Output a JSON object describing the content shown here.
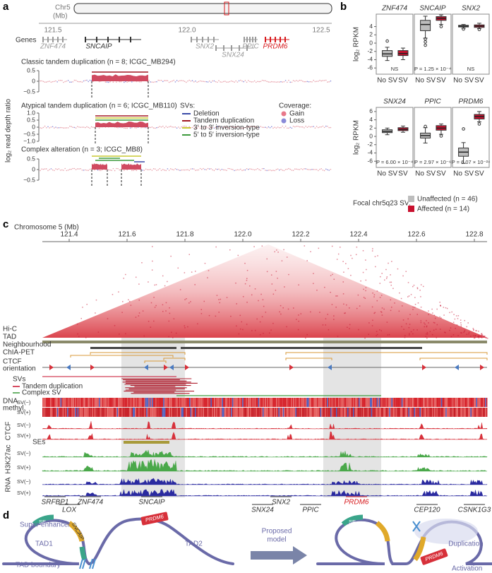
{
  "panel_labels": {
    "a": "a",
    "b": "b",
    "c": "c",
    "d": "d"
  },
  "panel_a": {
    "ideogram_label": "Chr5",
    "ideogram_unit": "(Mb)",
    "position_ticks": [
      "121.5",
      "122.0",
      "122.5"
    ],
    "genes_label": "Genes",
    "genes": [
      {
        "name": "ZNF474",
        "color": "#9a9a9a"
      },
      {
        "name": "SNCAIP",
        "color": "#333333"
      },
      {
        "name": "SNX2",
        "color": "#9a9a9a"
      },
      {
        "name": "SNX24",
        "color": "#9a9a9a"
      },
      {
        "name": "PPIC",
        "color": "#9a9a9a"
      },
      {
        "name": "PRDM6",
        "color": "#d7191c"
      }
    ],
    "y_label": "log₂ read depth ratio",
    "tracks": [
      {
        "title": "Classic tandem duplication (n = 8; ICGC_MB294)",
        "yticks": [
          "0.5",
          "0",
          "−0.5"
        ]
      },
      {
        "title": "Atypical tandem duplication (n = 6; ICGC_MB110)",
        "yticks": [
          "1.0",
          "0.5",
          "0",
          "−0.5",
          "−1.0"
        ]
      },
      {
        "title": "Complex alteration (n = 3; ICGC_MB8)",
        "yticks": [
          "0.5",
          "0",
          "−0.5"
        ]
      }
    ],
    "sv_legend": {
      "title": "SVs:",
      "items": [
        {
          "name": "Deletion",
          "color": "#3b4ba8"
        },
        {
          "name": "Tandem duplication",
          "color": "#a31621"
        },
        {
          "name": "3′ to 3′ inversion-type",
          "color": "#c8c832"
        },
        {
          "name": "5′ to 5′ inversion-type",
          "color": "#3c9a3c"
        }
      ]
    },
    "coverage_legend": {
      "title": "Coverage:",
      "items": [
        {
          "name": "Gain",
          "color": "#e8788a"
        },
        {
          "name": "Loss",
          "color": "#8a8ad8"
        }
      ]
    }
  },
  "chart_data": [
    {
      "type": "box",
      "title": "ZNF474",
      "y_label": "log₂ RPKM",
      "categories": [
        "No SV",
        "SV"
      ],
      "colors": [
        "#bdbdbd",
        "#c8102e"
      ],
      "ylim": [
        -7.5,
        7
      ],
      "yticks": [
        -6,
        -4,
        -2,
        0,
        2,
        4
      ],
      "annotation": "NS",
      "boxes": [
        {
          "whislo": -4.2,
          "q1": -3.2,
          "med": -2.6,
          "q3": -1.8,
          "whishi": -1.0,
          "fliers": [
            0.5
          ]
        },
        {
          "whislo": -4.0,
          "q1": -3.0,
          "med": -2.5,
          "q3": -1.8,
          "whishi": -1.2,
          "fliers": []
        }
      ]
    },
    {
      "type": "box",
      "title": "SNCAIP",
      "categories": [
        "No SV",
        "SV"
      ],
      "colors": [
        "#bdbdbd",
        "#c8102e"
      ],
      "ylim": [
        -7.5,
        7
      ],
      "annotation": "P = 1.25 × 10⁻⁴",
      "boxes": [
        {
          "whislo": 1.2,
          "q1": 3.0,
          "med": 4.5,
          "q3": 5.5,
          "whishi": 6.5,
          "fliers": [
            -0.5,
            0.3,
            1.0
          ]
        },
        {
          "whislo": 4.5,
          "q1": 5.5,
          "med": 6.0,
          "q3": 6.4,
          "whishi": 6.8,
          "fliers": [
            4.0
          ]
        }
      ]
    },
    {
      "type": "box",
      "title": "SNX2",
      "categories": [
        "No SV",
        "SV"
      ],
      "colors": [
        "#bdbdbd",
        "#c8102e"
      ],
      "ylim": [
        -7.5,
        7
      ],
      "annotation": "NS",
      "boxes": [
        {
          "whislo": 3.6,
          "q1": 3.9,
          "med": 4.1,
          "q3": 4.3,
          "whishi": 4.5,
          "fliers": [
            3.4
          ]
        },
        {
          "whislo": 3.5,
          "q1": 3.8,
          "med": 4.1,
          "q3": 4.4,
          "whishi": 4.8,
          "fliers": [
            3.3
          ]
        }
      ]
    },
    {
      "type": "box",
      "title": "SNX24",
      "y_label": "log₂ RPKM",
      "categories": [
        "No SV",
        "SV"
      ],
      "colors": [
        "#bdbdbd",
        "#c8102e"
      ],
      "ylim": [
        -7.5,
        7
      ],
      "yticks": [
        -6,
        -4,
        -2,
        0,
        2,
        4,
        6
      ],
      "annotation": "P = 6.00 × 10⁻⁴",
      "boxes": [
        {
          "whislo": 0.4,
          "q1": 0.9,
          "med": 1.2,
          "q3": 1.6,
          "whishi": 2.0,
          "fliers": []
        },
        {
          "whislo": 1.0,
          "q1": 1.4,
          "med": 1.7,
          "q3": 2.1,
          "whishi": 2.5,
          "fliers": []
        }
      ]
    },
    {
      "type": "box",
      "title": "PPIC",
      "categories": [
        "No SV",
        "SV"
      ],
      "colors": [
        "#bdbdbd",
        "#c8102e"
      ],
      "ylim": [
        -7.5,
        7
      ],
      "annotation": "P = 2.97 × 10⁻⁶",
      "boxes": [
        {
          "whislo": -1.6,
          "q1": -0.4,
          "med": 0.2,
          "q3": 0.8,
          "whishi": 2.1,
          "fliers": [
            2.4
          ]
        },
        {
          "whislo": 0.5,
          "q1": 1.5,
          "med": 2.0,
          "q3": 2.6,
          "whishi": 3.0,
          "fliers": [
            0.1
          ]
        }
      ]
    },
    {
      "type": "box",
      "title": "PRDM6",
      "categories": [
        "No SV",
        "SV"
      ],
      "colors": [
        "#bdbdbd",
        "#c8102e"
      ],
      "ylim": [
        -7.5,
        7
      ],
      "annotation": "P = 6.07 × 10⁻²⁴",
      "boxes": [
        {
          "whislo": -6.5,
          "q1": -4.8,
          "med": -3.8,
          "q3": -2.8,
          "whishi": -1.5,
          "fliers": [
            1.8
          ]
        },
        {
          "whislo": 3.5,
          "q1": 4.2,
          "med": 4.8,
          "q3": 5.3,
          "whishi": 6.0,
          "fliers": [
            3.0
          ]
        }
      ]
    }
  ],
  "panel_b_legend": {
    "title": "Focal chr5q23 SV:",
    "items": [
      {
        "name": "Unaffected (n = 46)",
        "color": "#bdbdbd"
      },
      {
        "name": "Affected (n = 14)",
        "color": "#c8102e"
      }
    ]
  },
  "panel_c": {
    "axis_title": "Chromosome 5 (Mb)",
    "position_ticks": [
      "121.4",
      "121.6",
      "121.8",
      "122.0",
      "122.2",
      "122.4",
      "122.6",
      "122.8"
    ],
    "labels": {
      "hic": "Hi-C",
      "tad": "TAD",
      "neighbourhood": "Neighbourhood",
      "chia": "ChIA-PET",
      "ctcf_orientation": [
        "CTCF",
        "orientation"
      ],
      "svs": "SVs",
      "tandem": "Tandem duplication",
      "complex": "Complex SV",
      "methyl": [
        "DNA",
        "methyl."
      ],
      "ctcf": "CTCF",
      "ses": "SEs",
      "h3k27ac": "H3K27ac",
      "rna": "RNA",
      "sv_minus": "SV(−)",
      "sv_plus": "SV(+)"
    },
    "genes": [
      {
        "name": "SRFBP1",
        "color": "#333333"
      },
      {
        "name": "LOX",
        "color": "#333333"
      },
      {
        "name": "ZNF474",
        "color": "#333333"
      },
      {
        "name": "SNCAIP",
        "color": "#333333"
      },
      {
        "name": "SNX2",
        "color": "#333333"
      },
      {
        "name": "SNX24",
        "color": "#333333"
      },
      {
        "name": "PPIC",
        "color": "#333333"
      },
      {
        "name": "PRDM6",
        "color": "#d7191c"
      },
      {
        "name": "CEP120",
        "color": "#333333"
      },
      {
        "name": "CSNK1G3",
        "color": "#333333"
      }
    ]
  },
  "panel_d": {
    "super_enhancer": "Super-enhancer",
    "se": "SE",
    "sncaip": "SNCAIP",
    "prdm6": "PRDM6",
    "tad1": "TAD1",
    "tad2": "TAD2",
    "tad_boundary": "TAD boundary",
    "proposed_model": [
      "Proposed",
      "model"
    ],
    "duplication": "Duplication",
    "activation": "Activation"
  }
}
